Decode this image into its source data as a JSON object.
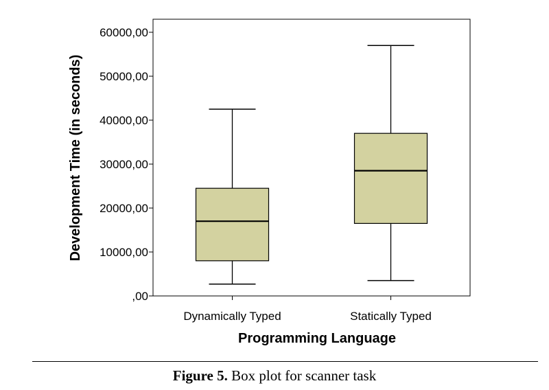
{
  "chart_data": {
    "type": "boxplot",
    "xlabel": "Programming Language",
    "ylabel": "Development Time (in seconds)",
    "ylim": [
      0,
      62000
    ],
    "yticks": [
      0,
      10000,
      20000,
      30000,
      40000,
      50000,
      60000
    ],
    "ytick_labels": [
      ",00",
      "10000,00",
      "20000,00",
      "30000,00",
      "40000,00",
      "50000,00",
      "60000,00"
    ],
    "categories": [
      "Dynamically Typed",
      "Statically Typed"
    ],
    "boxes": [
      {
        "category": "Dynamically Typed",
        "min": 2700,
        "q1": 8000,
        "median": 17000,
        "q3": 24500,
        "max": 42500
      },
      {
        "category": "Statically Typed",
        "min": 3500,
        "q1": 16500,
        "median": 28500,
        "q3": 37000,
        "max": 57000
      }
    ],
    "box_fill": "#d3d2a0",
    "line_color": "#000000",
    "grid": false
  },
  "caption": {
    "label": "Figure 5.",
    "text": " Box plot for scanner task"
  }
}
